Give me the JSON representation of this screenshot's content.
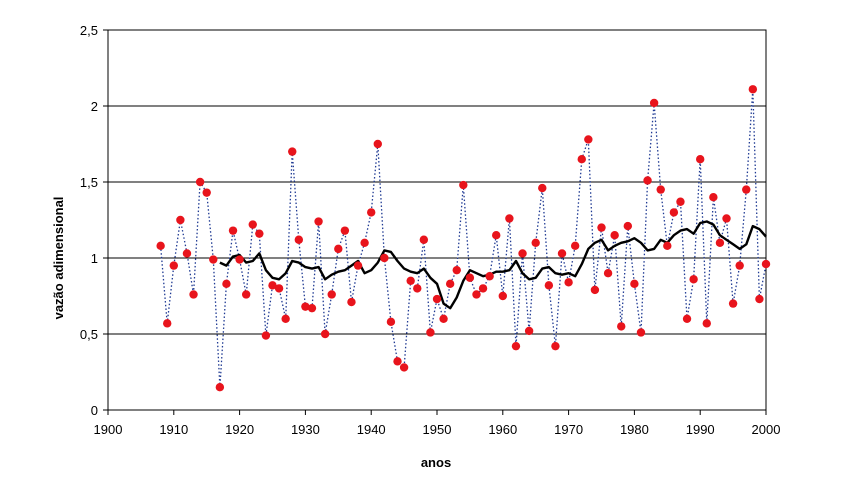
{
  "chart_data": {
    "type": "line",
    "title": "",
    "xlabel": "anos",
    "ylabel": "vazão adimensional",
    "xlim": [
      1900,
      2000
    ],
    "ylim": [
      0,
      2.5
    ],
    "xticks": [
      1900,
      1910,
      1920,
      1930,
      1940,
      1950,
      1960,
      1970,
      1980,
      1990,
      2000
    ],
    "xtick_labels": [
      "1900",
      "1910",
      "1920",
      "1930",
      "1940",
      "1950",
      "1960",
      "1970",
      "1980",
      "1990",
      "2000"
    ],
    "yticks": [
      0,
      0.5,
      1,
      1.5,
      2,
      2.5
    ],
    "ytick_labels": [
      "0",
      "0,5",
      "1",
      "1,5",
      "2",
      "2,5"
    ],
    "grid": "horizontal",
    "legend": "none",
    "colors": {
      "points": "#e8141c",
      "dotted_line": "#1f3a93",
      "moving_average": "#000000",
      "grid": "#000000"
    },
    "series": [
      {
        "style": "points joined by dotted line",
        "x": [
          1908,
          1909,
          1910,
          1911,
          1912,
          1913,
          1914,
          1915,
          1916,
          1917,
          1918,
          1919,
          1920,
          1921,
          1922,
          1923,
          1924,
          1925,
          1926,
          1927,
          1928,
          1929,
          1930,
          1931,
          1932,
          1933,
          1934,
          1935,
          1936,
          1937,
          1938,
          1939,
          1940,
          1941,
          1942,
          1943,
          1944,
          1945,
          1946,
          1947,
          1948,
          1949,
          1950,
          1951,
          1952,
          1953,
          1954,
          1955,
          1956,
          1957,
          1958,
          1959,
          1960,
          1961,
          1962,
          1963,
          1964,
          1965,
          1966,
          1967,
          1968,
          1969,
          1970,
          1971,
          1972,
          1973,
          1974,
          1975,
          1976,
          1977,
          1978,
          1979,
          1980,
          1981,
          1982,
          1983,
          1984,
          1985,
          1986,
          1987,
          1988,
          1989,
          1990,
          1991,
          1992,
          1993,
          1994,
          1995,
          1996,
          1997,
          1998,
          1999,
          2000
        ],
        "y": [
          1.08,
          0.57,
          0.95,
          1.25,
          1.03,
          0.76,
          1.5,
          1.43,
          0.99,
          0.15,
          0.83,
          1.18,
          0.99,
          0.76,
          1.22,
          1.16,
          0.49,
          0.82,
          0.8,
          0.6,
          1.7,
          1.12,
          0.68,
          0.67,
          1.24,
          0.5,
          0.76,
          1.06,
          1.18,
          0.71,
          0.95,
          1.1,
          1.3,
          1.75,
          1.0,
          0.58,
          0.32,
          0.28,
          0.85,
          0.8,
          1.12,
          0.51,
          0.73,
          0.6,
          0.83,
          0.92,
          1.48,
          0.87,
          0.76,
          0.8,
          0.88,
          1.15,
          0.75,
          1.26,
          0.42,
          1.03,
          0.52,
          1.1,
          1.46,
          0.82,
          0.42,
          1.03,
          0.84,
          1.08,
          1.65,
          1.78,
          0.79,
          1.2,
          0.9,
          1.15,
          0.55,
          1.21,
          0.83,
          0.51,
          1.51,
          2.02,
          1.45,
          1.08,
          1.3,
          1.37,
          0.6,
          0.86,
          1.65,
          0.57,
          1.4,
          1.1,
          1.26,
          0.7,
          0.95,
          1.45,
          2.11,
          0.73,
          0.96
        ]
      },
      {
        "style": "moving average (solid black)",
        "x": [
          1917,
          1918,
          1919,
          1920,
          1921,
          1922,
          1923,
          1924,
          1925,
          1926,
          1927,
          1928,
          1929,
          1930,
          1931,
          1932,
          1933,
          1934,
          1935,
          1936,
          1937,
          1938,
          1939,
          1940,
          1941,
          1942,
          1943,
          1944,
          1945,
          1946,
          1947,
          1948,
          1949,
          1950,
          1951,
          1952,
          1953,
          1954,
          1955,
          1956,
          1957,
          1958,
          1959,
          1960,
          1961,
          1962,
          1963,
          1964,
          1965,
          1966,
          1967,
          1968,
          1969,
          1970,
          1971,
          1972,
          1973,
          1974,
          1975,
          1976,
          1977,
          1978,
          1979,
          1980,
          1981,
          1982,
          1983,
          1984,
          1985,
          1986,
          1987,
          1988,
          1989,
          1990,
          1991,
          1992,
          1993,
          1994,
          1995,
          1996,
          1997,
          1998,
          1999,
          2000
        ],
        "y": [
          0.97,
          0.95,
          1.01,
          1.02,
          0.97,
          0.98,
          1.03,
          0.92,
          0.87,
          0.86,
          0.9,
          0.98,
          0.97,
          0.94,
          0.93,
          0.94,
          0.86,
          0.89,
          0.91,
          0.92,
          0.95,
          0.98,
          0.9,
          0.92,
          0.97,
          1.05,
          1.04,
          0.98,
          0.93,
          0.91,
          0.9,
          0.93,
          0.87,
          0.83,
          0.7,
          0.67,
          0.74,
          0.85,
          0.92,
          0.9,
          0.88,
          0.89,
          0.91,
          0.91,
          0.92,
          0.98,
          0.9,
          0.86,
          0.87,
          0.93,
          0.94,
          0.9,
          0.89,
          0.9,
          0.88,
          0.96,
          1.06,
          1.1,
          1.12,
          1.05,
          1.08,
          1.1,
          1.11,
          1.13,
          1.1,
          1.05,
          1.06,
          1.12,
          1.1,
          1.15,
          1.18,
          1.19,
          1.16,
          1.23,
          1.24,
          1.22,
          1.15,
          1.12,
          1.09,
          1.06,
          1.09,
          1.21,
          1.19,
          1.14
        ]
      }
    ]
  }
}
